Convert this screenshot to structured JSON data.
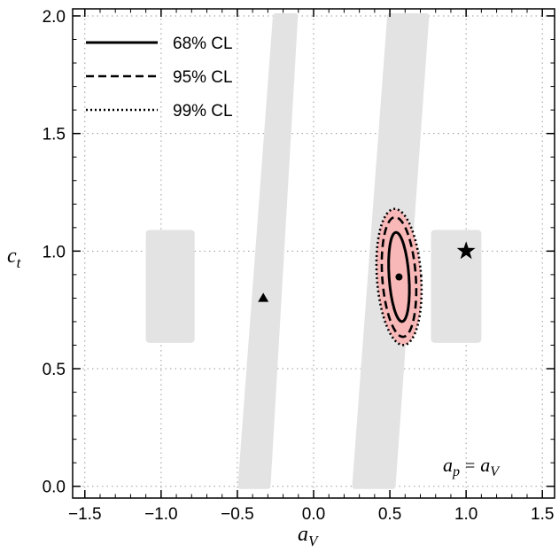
{
  "chart_data": {
    "type": "scatter",
    "title": "",
    "xlabel": "a",
    "xlabel_sub": "V",
    "ylabel": "c",
    "ylabel_sub": "t",
    "xlim": [
      -1.58,
      1.58
    ],
    "ylim": [
      -0.05,
      2.03
    ],
    "xticks": [
      -1.5,
      -1.0,
      -0.5,
      0.0,
      0.5,
      1.0,
      1.5
    ],
    "xtick_labels": [
      "−1.5",
      "−1.0",
      "−0.5",
      "0.0",
      "0.5",
      "1.0",
      "1.5"
    ],
    "yticks": [
      0.0,
      0.5,
      1.0,
      1.5,
      2.0
    ],
    "ytick_labels": [
      "0.0",
      "0.5",
      "1.0",
      "1.5",
      "2.0"
    ],
    "grid": true,
    "legend_position": "top-left",
    "legend": [
      {
        "label": "68% CL",
        "style": "solid"
      },
      {
        "label": "95% CL",
        "style": "dashed"
      },
      {
        "label": "99% CL",
        "style": "dotted"
      }
    ],
    "excluded_regions": [
      {
        "name": "band-left",
        "polygon": [
          [
            -0.25,
            2.0
          ],
          [
            -0.12,
            2.0
          ],
          [
            -0.3,
            0.0
          ],
          [
            -0.48,
            0.0
          ]
        ]
      },
      {
        "name": "band-right",
        "polygon": [
          [
            0.5,
            2.0
          ],
          [
            0.74,
            2.0
          ],
          [
            0.52,
            0.0
          ],
          [
            0.27,
            0.0
          ]
        ]
      },
      {
        "name": "box-left",
        "rect": [
          [
            -1.1,
            0.61
          ],
          [
            -0.78,
            1.09
          ]
        ]
      },
      {
        "name": "box-right",
        "rect": [
          [
            0.77,
            0.61
          ],
          [
            1.1,
            1.09
          ]
        ]
      }
    ],
    "confidence_region": {
      "center": [
        0.56,
        0.89
      ],
      "color": "#f8b8b8",
      "ellipses": [
        {
          "level": "68% CL",
          "style": "solid",
          "rx": 0.065,
          "ry": 0.19
        },
        {
          "level": "95% CL",
          "style": "dashed",
          "rx": 0.11,
          "ry": 0.255
        },
        {
          "level": "99% CL",
          "style": "dotted",
          "rx": 0.145,
          "ry": 0.29
        }
      ],
      "tilt_deg": -4
    },
    "points": [
      {
        "name": "best-fit",
        "x": 0.56,
        "y": 0.89,
        "marker": "circle"
      },
      {
        "name": "triangle",
        "x": -0.33,
        "y": 0.8,
        "marker": "triangle"
      },
      {
        "name": "star",
        "x": 1.0,
        "y": 1.0,
        "marker": "star"
      }
    ],
    "annotation": {
      "text_a": "a",
      "sub_p": "p",
      "equals": "=",
      "text_b": "a",
      "sub_v": "V",
      "position": "bottom-right"
    },
    "colors": {
      "excluded": "#e3e3e3",
      "confidence_fill": "#f8b8b8",
      "grid": "#9a9a9a",
      "line": "#000000"
    }
  }
}
